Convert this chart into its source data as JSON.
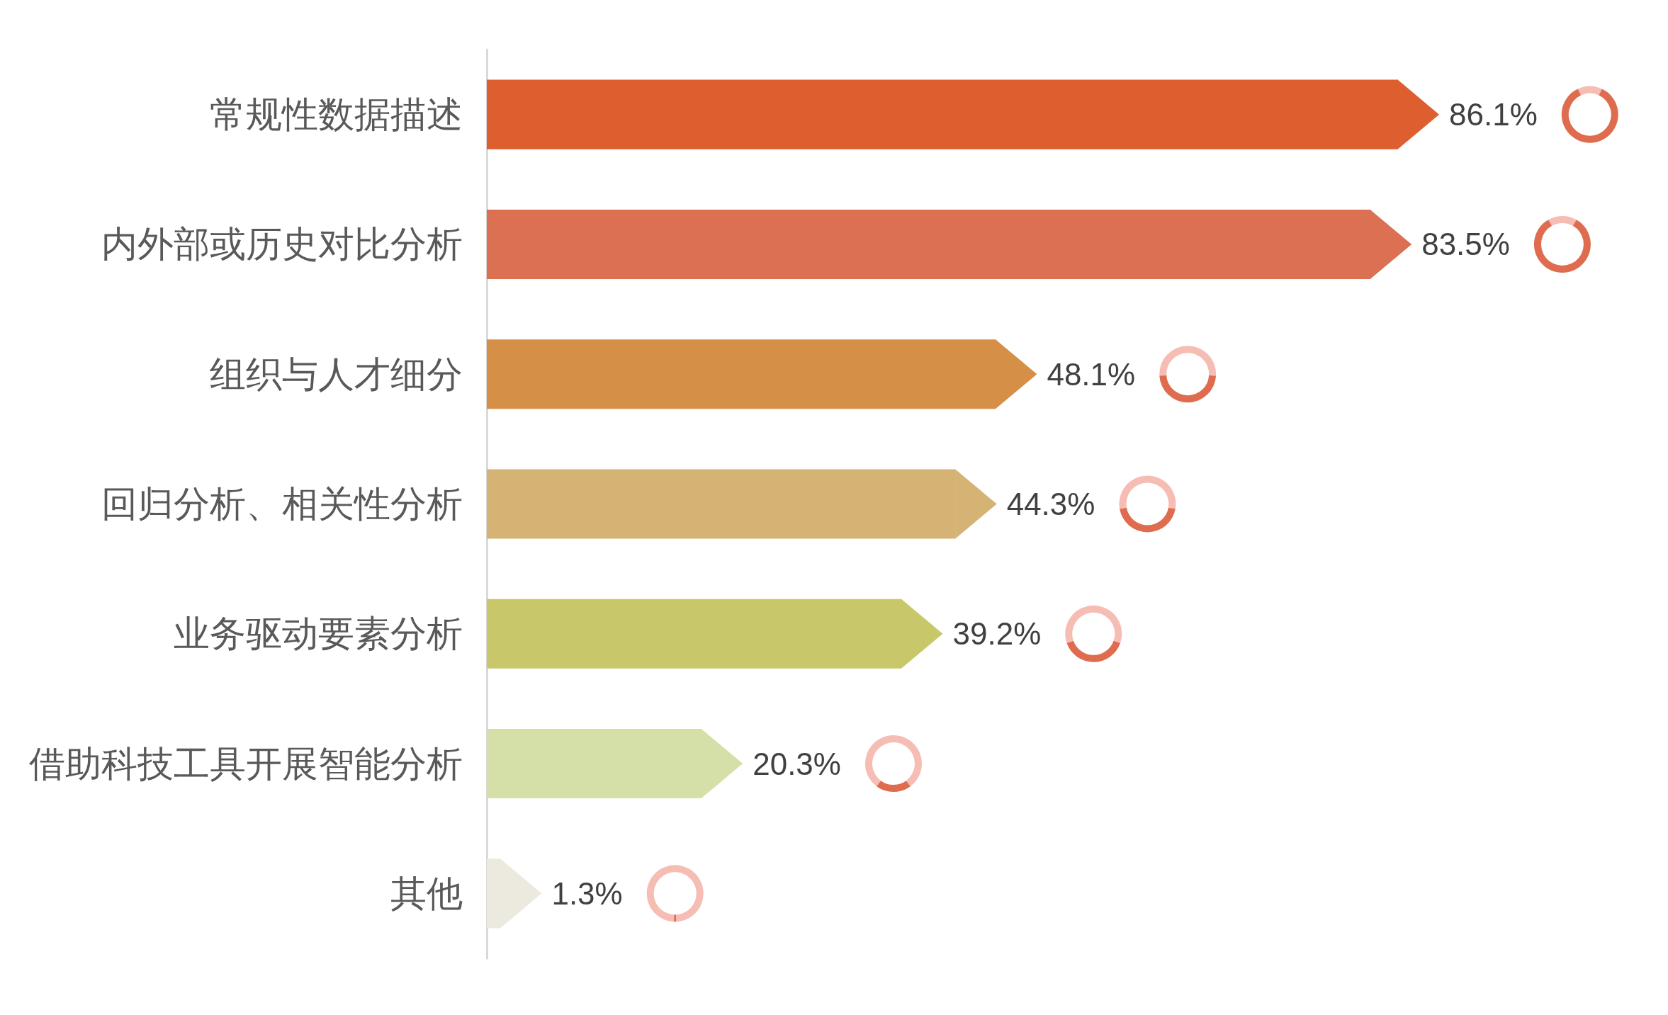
{
  "chart_data": {
    "type": "bar",
    "orientation": "horizontal",
    "categories": [
      "常规性数据描述",
      "内外部或历史对比分析",
      "组织与人才细分",
      "回归分析、相关性分析",
      "业务驱动要素分析",
      "借助科技工具开展智能分析",
      "其他"
    ],
    "values": [
      86.1,
      83.5,
      48.1,
      44.3,
      39.2,
      20.3,
      1.3
    ],
    "colors": [
      "#dd5e2f",
      "#db7052",
      "#d68f47",
      "#d5b374",
      "#c8c86a",
      "#d5e0a8",
      "#eceadf"
    ],
    "value_labels": [
      "86.1%",
      "83.5%",
      "48.1%",
      "44.3%",
      "39.2%",
      "20.3%",
      "1.3%"
    ],
    "tick_labels": "y"
  }
}
